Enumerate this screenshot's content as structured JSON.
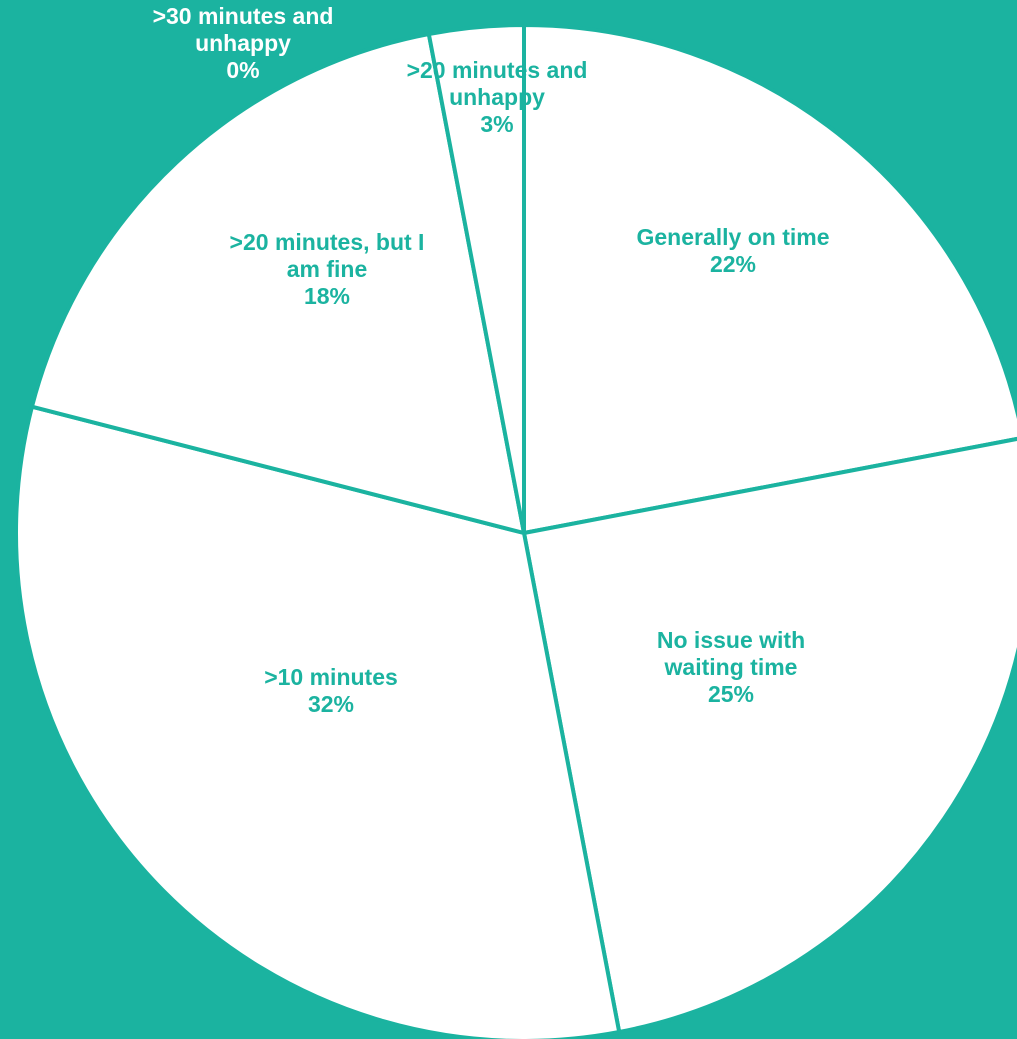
{
  "chart_data": {
    "type": "pie",
    "title": "",
    "start_angle_deg": 0,
    "direction": "clockwise",
    "slices": [
      {
        "label_lines": [
          "Generally on time"
        ],
        "value": 22,
        "value_label": "22%"
      },
      {
        "label_lines": [
          "No issue with",
          "waiting time"
        ],
        "value": 25,
        "value_label": "25%"
      },
      {
        "label_lines": [
          ">10 minutes"
        ],
        "value": 32,
        "value_label": "32%"
      },
      {
        "label_lines": [
          ">20 minutes, but I",
          "am fine"
        ],
        "value": 18,
        "value_label": "18%"
      },
      {
        "label_lines": [
          ">20 minutes and",
          "unhappy"
        ],
        "value": 3,
        "value_label": "3%"
      },
      {
        "label_lines": [
          ">30 minutes and",
          "unhappy"
        ],
        "value": 0,
        "value_label": "0%"
      }
    ],
    "legend": "none"
  },
  "colors": {
    "background": "#1BB3A0",
    "slice_fill": "#FFFFFF",
    "label_on_slice": "#1BB3A0",
    "label_on_background": "#FFFFFF"
  }
}
